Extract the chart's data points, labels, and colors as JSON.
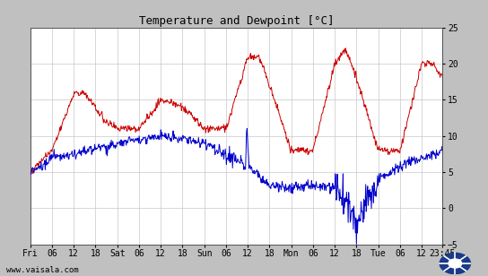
{
  "title": "Temperature and Dewpoint [°C]",
  "background_color": "#c0c0c0",
  "plot_bg_color": "#ffffff",
  "grid_color": "#c8c8c8",
  "temp_color": "#cc0000",
  "dew_color": "#0000cc",
  "ylim": [
    -5,
    25
  ],
  "yticks": [
    -5,
    0,
    5,
    10,
    15,
    20,
    25
  ],
  "footer_text": "www.vaisala.com",
  "title_fontsize": 9,
  "tick_fontsize": 7,
  "footer_fontsize": 6.5,
  "x_tick_labels": [
    "Fri",
    "06",
    "12",
    "18",
    "Sat",
    "06",
    "12",
    "18",
    "Sun",
    "06",
    "12",
    "18",
    "Mon",
    "06",
    "12",
    "18",
    "Tue",
    "06",
    "12",
    "23:45"
  ],
  "x_tick_positions": [
    0,
    6,
    12,
    18,
    24,
    30,
    36,
    42,
    48,
    54,
    60,
    66,
    72,
    78,
    84,
    90,
    96,
    102,
    108,
    113.75
  ],
  "total_hours": 113.75,
  "num_points": 800
}
